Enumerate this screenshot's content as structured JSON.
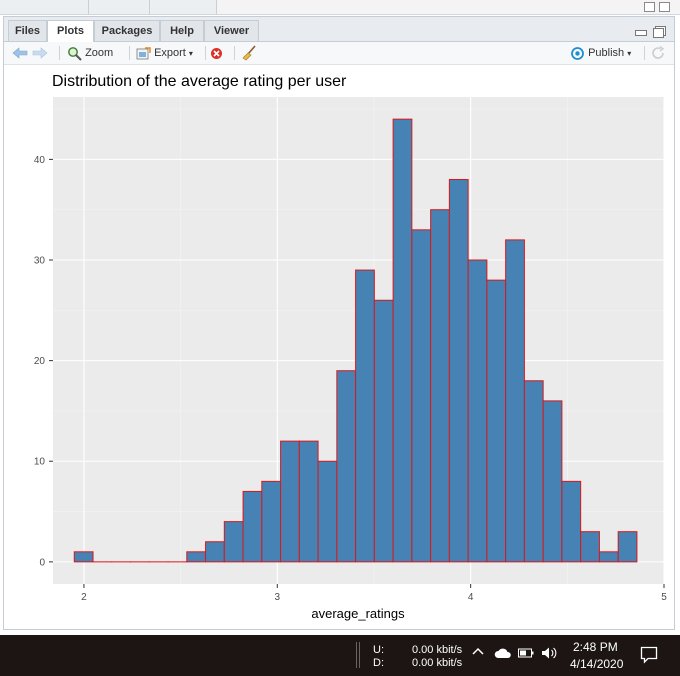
{
  "tabs": [
    {
      "label": "Files",
      "active": false
    },
    {
      "label": "Plots",
      "active": true
    },
    {
      "label": "Packages",
      "active": false
    },
    {
      "label": "Help",
      "active": false
    },
    {
      "label": "Viewer",
      "active": false
    }
  ],
  "toolbar": {
    "zoom_label": "Zoom",
    "export_label": "Export",
    "publish_label": "Publish",
    "icons": [
      "back-arrow-icon",
      "forward-arrow-icon",
      "magnifier-icon",
      "export-icon",
      "remove-icon",
      "broom-icon",
      "publish-icon",
      "refresh-icon"
    ]
  },
  "colors": {
    "bar_fill": "#4682b4",
    "bar_outline": "#d7191c",
    "panel_bg": "#ebebeb",
    "grid_line": "#ffffff",
    "publish_accent": "#1a8fd6",
    "taskbar_bg": "#1c1514"
  },
  "chart_data": {
    "type": "bar",
    "title": "Distribution of the average rating per user",
    "xlabel": "average_ratings",
    "ylabel": "",
    "bin_width": 0.097,
    "bin_starts": [
      1.95,
      2.047,
      2.144,
      2.241,
      2.338,
      2.435,
      2.532,
      2.629,
      2.726,
      2.823,
      2.92,
      3.017,
      3.114,
      3.211,
      3.308,
      3.405,
      3.502,
      3.599,
      3.696,
      3.793,
      3.89,
      3.987,
      4.084,
      4.181,
      4.278,
      4.375,
      4.472,
      4.569,
      4.666,
      4.763
    ],
    "values": [
      1,
      0,
      0,
      0,
      0,
      0,
      1,
      2,
      4,
      7,
      8,
      12,
      12,
      10,
      19,
      29,
      26,
      44,
      33,
      35,
      38,
      30,
      28,
      32,
      18,
      16,
      8,
      3,
      1,
      3
    ],
    "x_ticks": [
      "2",
      "3",
      "4",
      "5"
    ],
    "y_ticks": [
      "0",
      "10",
      "20",
      "30",
      "40"
    ],
    "xlim": [
      1.84,
      5.0
    ],
    "ylim": [
      -2.2,
      46.2
    ],
    "grid": true
  },
  "taskbar": {
    "net_u_label": "U:",
    "net_d_label": "D:",
    "net_u_value": "0.00 kbit/s",
    "net_d_value": "0.00 kbit/s",
    "time": "2:48 PM",
    "date": "4/14/2020",
    "icons": [
      "chevron-up-icon",
      "cloud-icon",
      "battery-icon",
      "speaker-icon",
      "notification-icon"
    ]
  }
}
